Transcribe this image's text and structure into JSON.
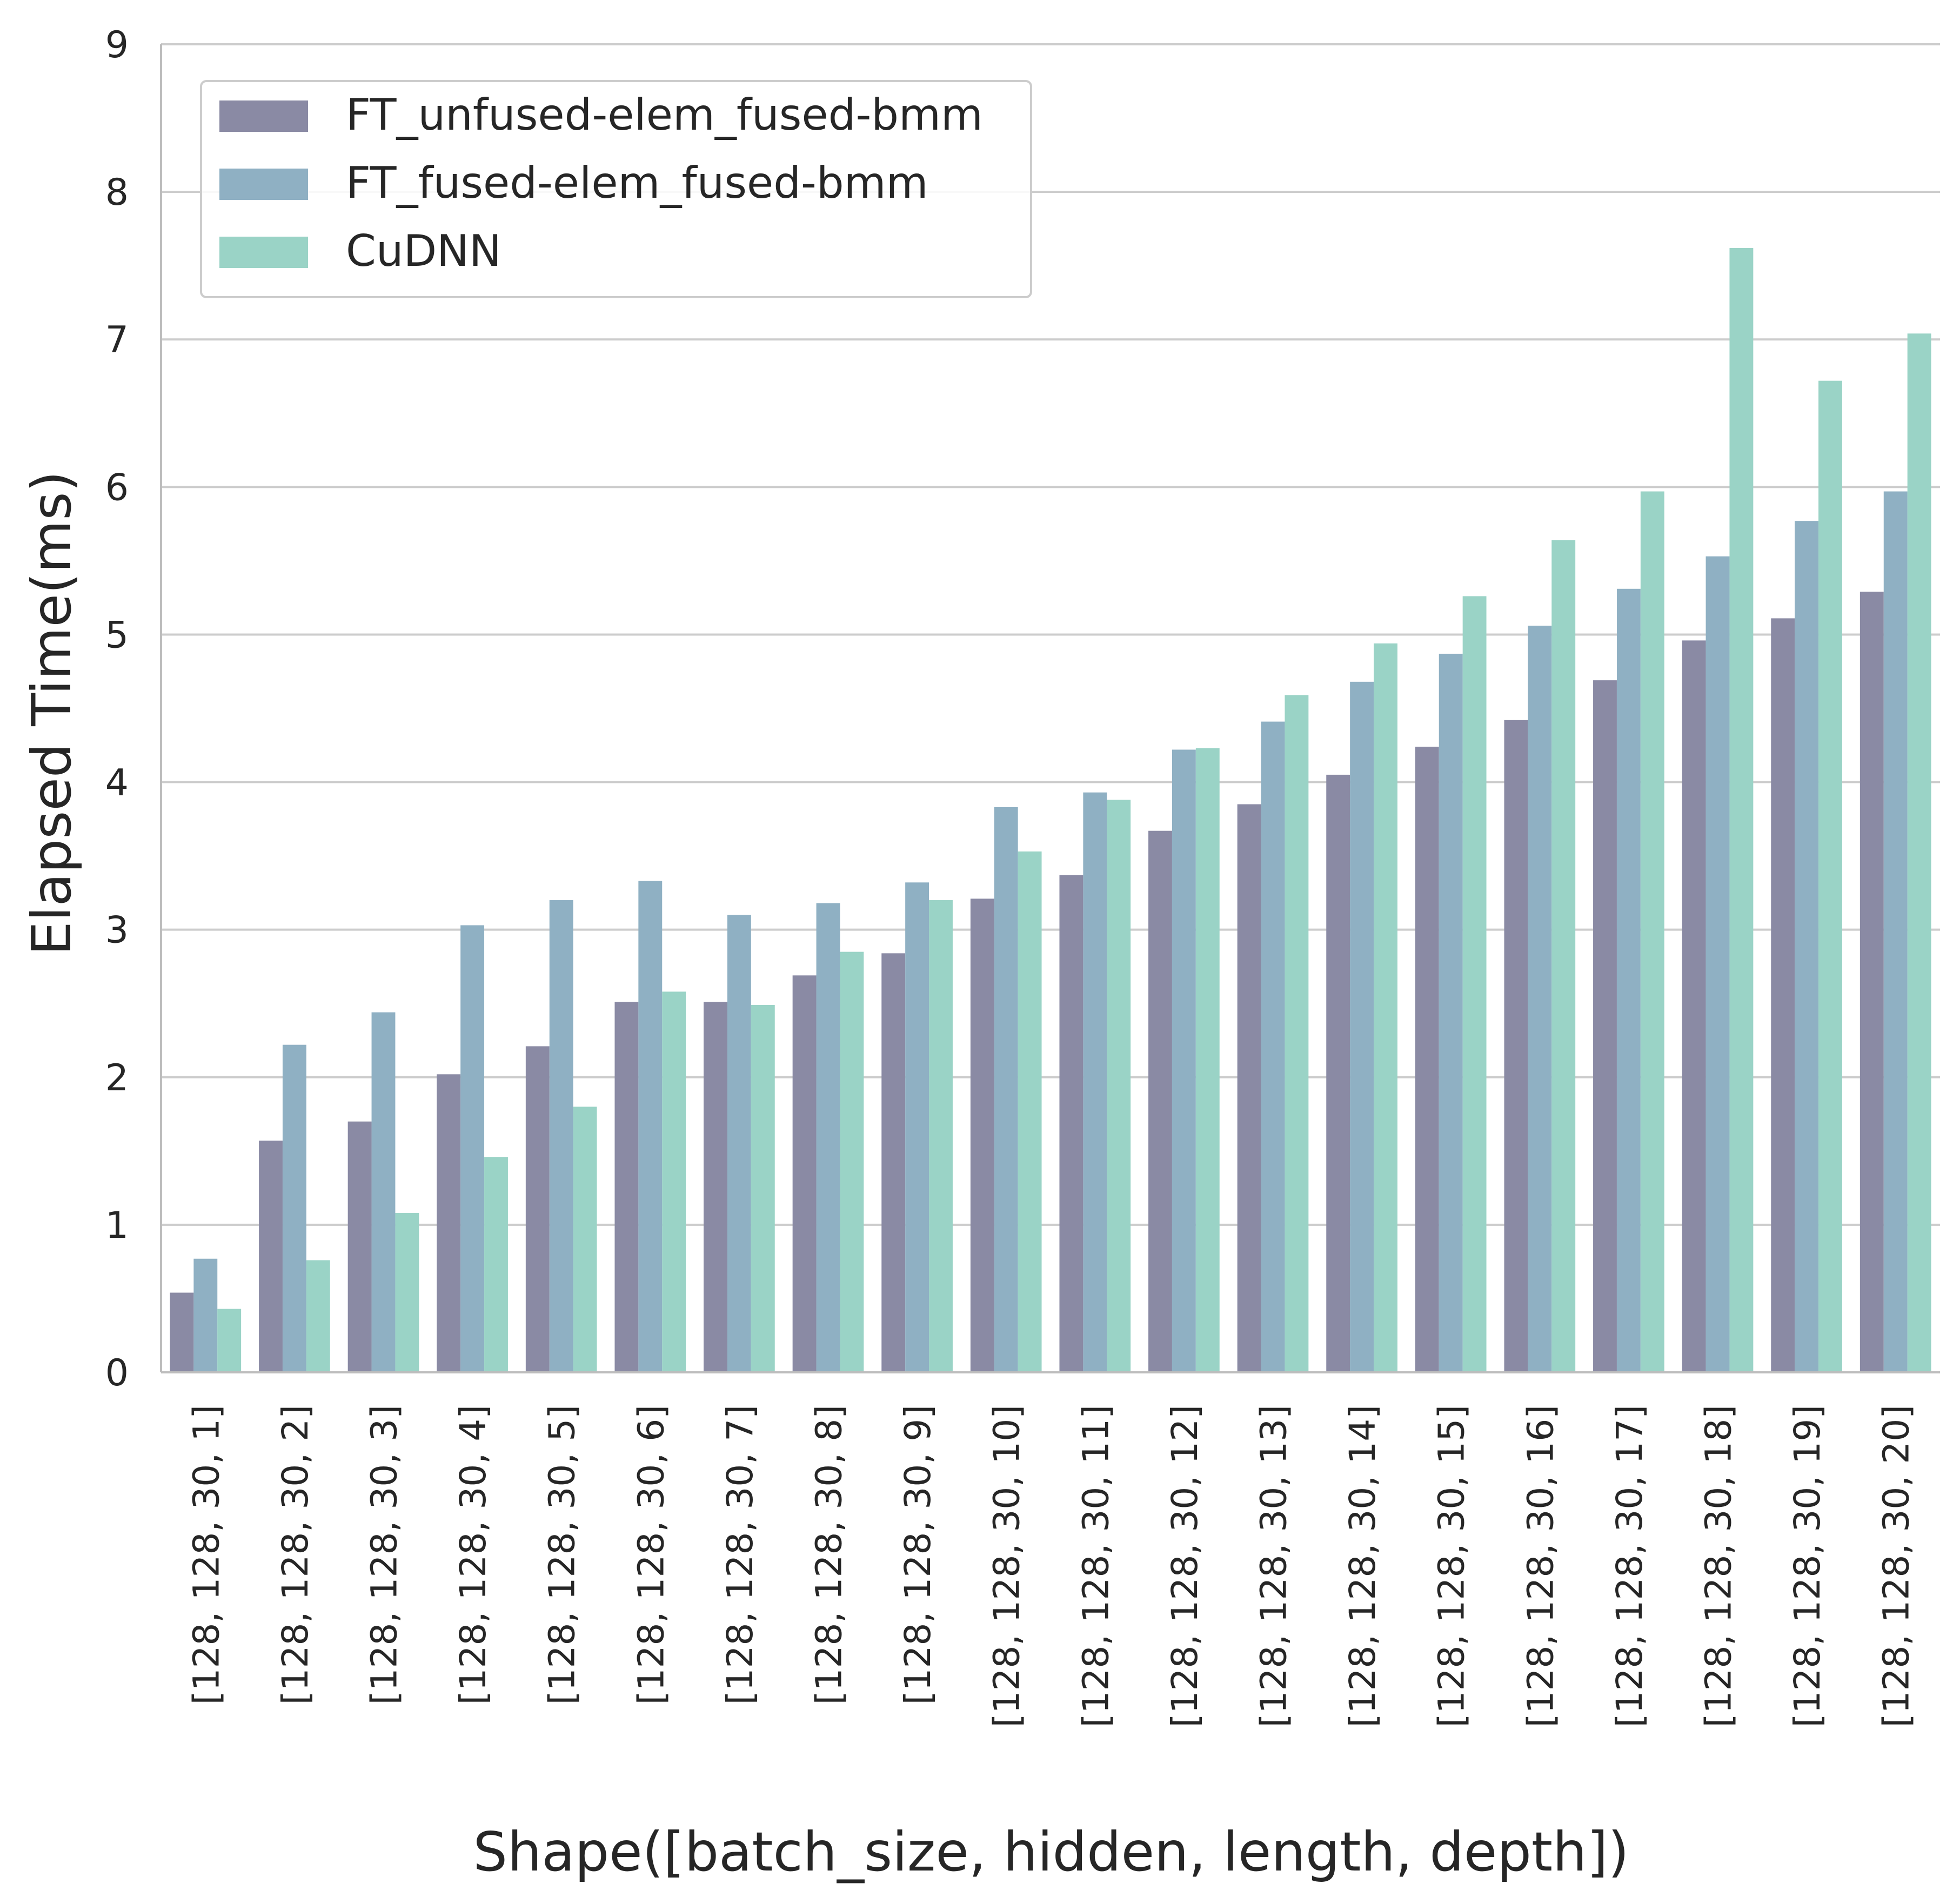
{
  "chart_data": {
    "type": "bar",
    "title": "",
    "xlabel": "Shape([batch_size, hidden, length, depth])",
    "ylabel": "Elapsed Time(ms)",
    "ylim": [
      0,
      9
    ],
    "yticks": [
      "0",
      "1",
      "2",
      "3",
      "4",
      "5",
      "6",
      "7",
      "8",
      "9"
    ],
    "grid": "horizontal",
    "legend_position": "top-left",
    "categories": [
      "[128, 128, 30, 1]",
      "[128, 128, 30, 2]",
      "[128, 128, 30, 3]",
      "[128, 128, 30, 4]",
      "[128, 128, 30, 5]",
      "[128, 128, 30, 6]",
      "[128, 128, 30, 7]",
      "[128, 128, 30, 8]",
      "[128, 128, 30, 9]",
      "[128, 128, 30, 10]",
      "[128, 128, 30, 11]",
      "[128, 128, 30, 12]",
      "[128, 128, 30, 13]",
      "[128, 128, 30, 14]",
      "[128, 128, 30, 15]",
      "[128, 128, 30, 16]",
      "[128, 128, 30, 17]",
      "[128, 128, 30, 18]",
      "[128, 128, 30, 19]",
      "[128, 128, 30, 20]"
    ],
    "series": [
      {
        "name": "FT_unfused-elem_fused-bmm",
        "color": "#8a8aa4",
        "values": [
          0.54,
          1.57,
          1.7,
          2.02,
          2.21,
          2.51,
          2.51,
          2.69,
          2.84,
          3.21,
          3.37,
          3.67,
          3.85,
          4.05,
          4.24,
          4.42,
          4.69,
          4.96,
          5.11,
          5.29
        ]
      },
      {
        "name": "FT_fused-elem_fused-bmm",
        "color": "#8fb0c3",
        "values": [
          0.77,
          2.22,
          2.44,
          3.03,
          3.2,
          3.33,
          3.1,
          3.18,
          3.32,
          3.83,
          3.93,
          4.22,
          4.41,
          4.68,
          4.87,
          5.06,
          5.31,
          5.53,
          5.77,
          5.97
        ]
      },
      {
        "name": "CuDNN",
        "color": "#9ad3c6",
        "values": [
          0.43,
          0.76,
          1.08,
          1.46,
          1.8,
          2.58,
          2.49,
          2.85,
          3.2,
          3.53,
          3.88,
          4.23,
          4.59,
          4.94,
          5.26,
          5.64,
          5.97,
          7.62,
          6.72,
          7.04
        ]
      }
    ]
  }
}
